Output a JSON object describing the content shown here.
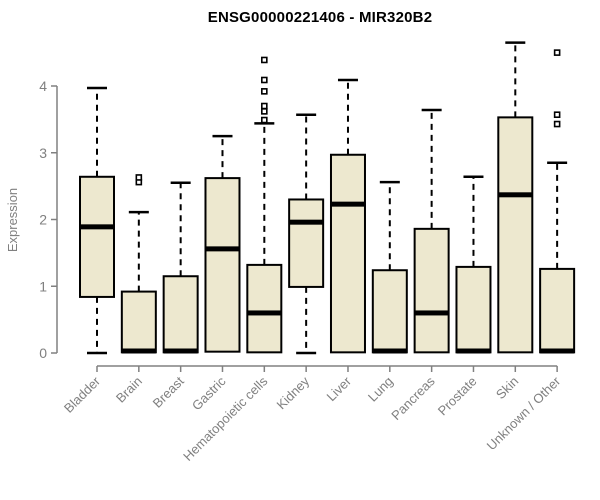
{
  "title": "ENSG00000221406 - MIR320B2",
  "chart_data": {
    "type": "boxplot",
    "title": "ENSG00000221406 - MIR320B2",
    "xlabel": "",
    "ylabel": "Expression",
    "ylim": [
      0,
      4.7
    ],
    "yticks": [
      0,
      1,
      2,
      3,
      4
    ],
    "grid": false,
    "legend": false,
    "box_fill": "#EDE8CF",
    "box_stroke": "#000000",
    "axis_color": "#808080",
    "categories": [
      "Bladder",
      "Brain",
      "Breast",
      "Gastric",
      "Hematopoietic cells",
      "Kidney",
      "Liver",
      "Lung",
      "Pancreas",
      "Prostate",
      "Skin",
      "Unknown / Other"
    ],
    "series": [
      {
        "category": "Bladder",
        "min": 0,
        "q1": 0.84,
        "median": 1.89,
        "q3": 2.64,
        "max": 3.97,
        "outliers": []
      },
      {
        "category": "Brain",
        "min": 0,
        "q1": 0.01,
        "median": 0.03,
        "q3": 0.92,
        "max": 2.11,
        "outliers": [
          2.56,
          2.63
        ]
      },
      {
        "category": "Breast",
        "min": 0,
        "q1": 0.01,
        "median": 0.03,
        "q3": 1.15,
        "max": 2.55,
        "outliers": []
      },
      {
        "category": "Gastric",
        "min": 0.02,
        "q1": 0.02,
        "median": 1.56,
        "q3": 2.62,
        "max": 3.25,
        "outliers": []
      },
      {
        "category": "Hematopoietic cells",
        "min": 0.01,
        "q1": 0.01,
        "median": 0.6,
        "q3": 1.32,
        "max": 3.44,
        "outliers": [
          3.49,
          3.62,
          3.7,
          3.92,
          4.09,
          4.39
        ]
      },
      {
        "category": "Kidney",
        "min": 0,
        "q1": 0.99,
        "median": 1.96,
        "q3": 2.3,
        "max": 3.57,
        "outliers": []
      },
      {
        "category": "Liver",
        "min": 0.01,
        "q1": 0.01,
        "median": 2.23,
        "q3": 2.97,
        "max": 4.09,
        "outliers": []
      },
      {
        "category": "Lung",
        "min": 0,
        "q1": 0.01,
        "median": 0.03,
        "q3": 1.24,
        "max": 2.56,
        "outliers": []
      },
      {
        "category": "Pancreas",
        "min": 0.01,
        "q1": 0.01,
        "median": 0.6,
        "q3": 1.86,
        "max": 3.64,
        "outliers": []
      },
      {
        "category": "Prostate",
        "min": 0,
        "q1": 0.01,
        "median": 0.03,
        "q3": 1.29,
        "max": 2.64,
        "outliers": []
      },
      {
        "category": "Skin",
        "min": 0.01,
        "q1": 0.01,
        "median": 2.37,
        "q3": 3.53,
        "max": 4.65,
        "outliers": []
      },
      {
        "category": "Unknown / Other",
        "min": 0,
        "q1": 0.01,
        "median": 0.03,
        "q3": 1.26,
        "max": 2.85,
        "outliers": [
          3.43,
          3.57,
          4.5
        ]
      }
    ]
  }
}
